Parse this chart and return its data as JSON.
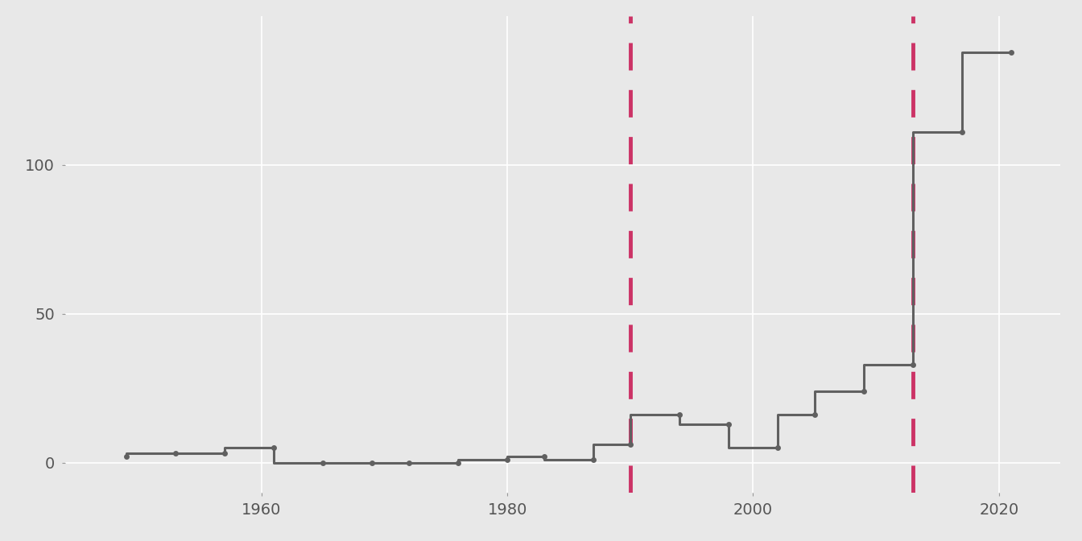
{
  "elections": [
    {
      "year": 1949,
      "extra_seats": 2
    },
    {
      "year": 1953,
      "extra_seats": 3
    },
    {
      "year": 1957,
      "extra_seats": 3
    },
    {
      "year": 1961,
      "extra_seats": 5
    },
    {
      "year": 1965,
      "extra_seats": 0
    },
    {
      "year": 1969,
      "extra_seats": 0
    },
    {
      "year": 1972,
      "extra_seats": 0
    },
    {
      "year": 1976,
      "extra_seats": 0
    },
    {
      "year": 1980,
      "extra_seats": 1
    },
    {
      "year": 1983,
      "extra_seats": 2
    },
    {
      "year": 1987,
      "extra_seats": 1
    },
    {
      "year": 1990,
      "extra_seats": 6
    },
    {
      "year": 1994,
      "extra_seats": 16
    },
    {
      "year": 1998,
      "extra_seats": 13
    },
    {
      "year": 2002,
      "extra_seats": 5
    },
    {
      "year": 2005,
      "extra_seats": 16
    },
    {
      "year": 2009,
      "extra_seats": 24
    },
    {
      "year": 2013,
      "extra_seats": 33
    },
    {
      "year": 2017,
      "extra_seats": 111
    },
    {
      "year": 2021,
      "extra_seats": 138
    }
  ],
  "vline1_x": 1990,
  "vline2_x": 2013,
  "line_color": "#606060",
  "vline_color": "#cc3366",
  "dot_color": "#606060",
  "bg_color": "#e8e8e8",
  "panel_bg": "#e8e8e8",
  "grid_color": "#ffffff",
  "yticks": [
    0,
    50,
    100
  ],
  "xticks": [
    1960,
    1980,
    2000,
    2020
  ],
  "ylim": [
    -10,
    150
  ],
  "xlim": [
    1944,
    2025
  ]
}
